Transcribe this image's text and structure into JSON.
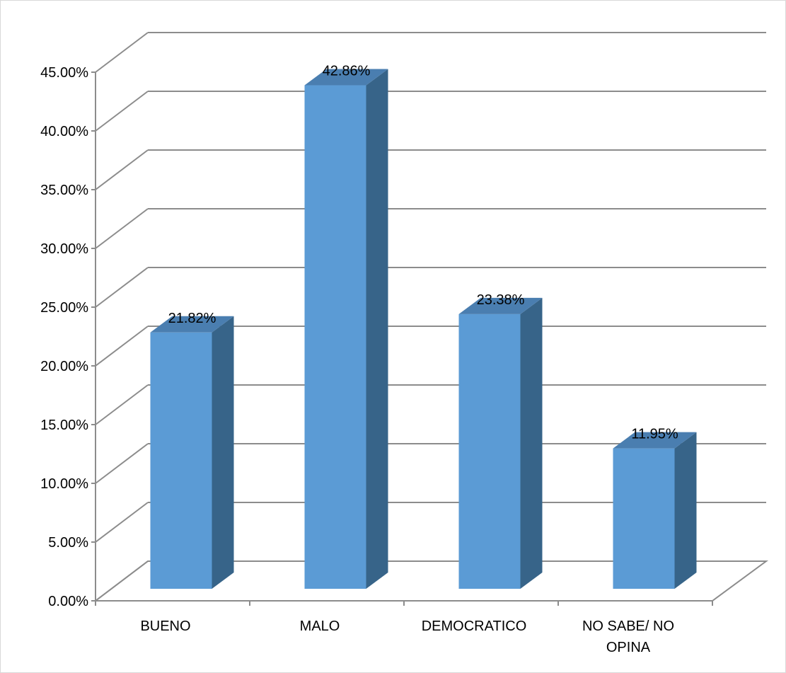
{
  "chart_data": {
    "type": "bar",
    "categories": [
      "BUENO",
      "MALO",
      "DEMOCRATICO",
      "NO SABE/ NO OPINA"
    ],
    "category_lines": [
      [
        "BUENO"
      ],
      [
        "MALO"
      ],
      [
        "DEMOCRATICO"
      ],
      [
        "NO SABE/ NO",
        "OPINA"
      ]
    ],
    "values": [
      21.82,
      42.86,
      23.38,
      11.95
    ],
    "data_labels": [
      "21.82%",
      "42.86%",
      "23.38%",
      "11.95%"
    ],
    "ylim": [
      0,
      45
    ],
    "ytick_step": 5,
    "ytick_labels": [
      "0.00%",
      "5.00%",
      "10.00%",
      "15.00%",
      "20.00%",
      "25.00%",
      "30.00%",
      "35.00%",
      "40.00%",
      "45.00%"
    ],
    "grid": true,
    "three_d": true,
    "legend": "none",
    "colors": {
      "bar_front": "#5b9bd5",
      "bar_side": "#376489",
      "bar_top": "#4a7eb0",
      "grid": "#8c8c8c"
    }
  }
}
